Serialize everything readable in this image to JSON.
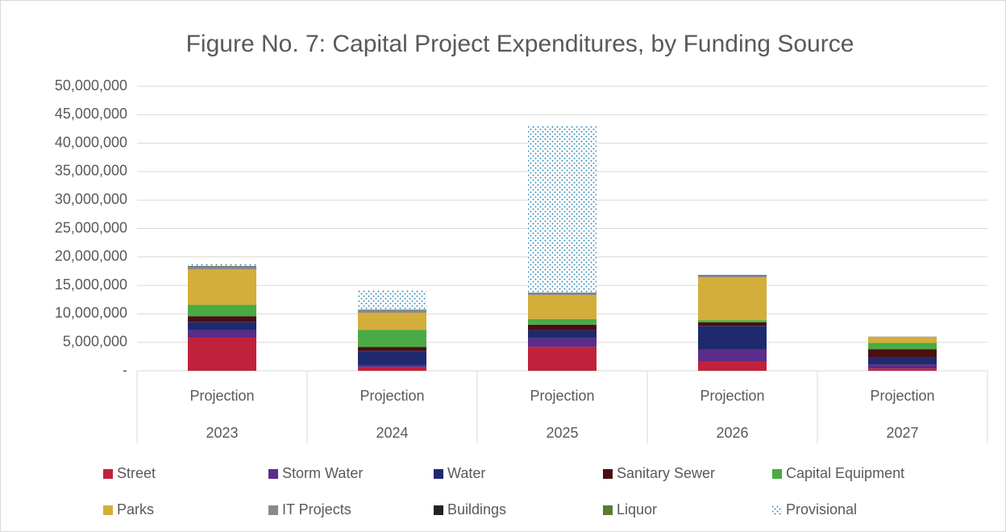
{
  "chart_data": {
    "type": "stacked_bar",
    "title": "Figure No. 7: Capital Project Expenditures, by Funding Source",
    "categories": [
      [
        "Projection",
        "2023"
      ],
      [
        "Projection",
        "2024"
      ],
      [
        "Projection",
        "2025"
      ],
      [
        "Projection",
        "2026"
      ],
      [
        "Projection",
        "2027"
      ]
    ],
    "ylim": [
      0,
      50000000
    ],
    "yticks": [
      {
        "value": 0,
        "label": "-"
      },
      {
        "value": 5000000,
        "label": "5,000,000"
      },
      {
        "value": 10000000,
        "label": "10,000,000"
      },
      {
        "value": 15000000,
        "label": "15,000,000"
      },
      {
        "value": 20000000,
        "label": "20,000,000"
      },
      {
        "value": 25000000,
        "label": "25,000,000"
      },
      {
        "value": 30000000,
        "label": "30,000,000"
      },
      {
        "value": 35000000,
        "label": "35,000,000"
      },
      {
        "value": 40000000,
        "label": "40,000,000"
      },
      {
        "value": 45000000,
        "label": "45,000,000"
      },
      {
        "value": 50000000,
        "label": "50,000,000"
      }
    ],
    "grid": true,
    "legend": "bottom",
    "series": [
      {
        "name": "Street",
        "color": "#c0223b",
        "values": [
          5800000,
          600000,
          4200000,
          1700000,
          400000
        ]
      },
      {
        "name": "Storm Water",
        "color": "#5b2c8a",
        "values": [
          1300000,
          400000,
          1500000,
          2000000,
          700000
        ]
      },
      {
        "name": "Water",
        "color": "#1f2a6e",
        "values": [
          1500000,
          2500000,
          1400000,
          4200000,
          1300000
        ]
      },
      {
        "name": "Sanitary Sewer",
        "color": "#4a0f12",
        "values": [
          1000000,
          700000,
          1000000,
          600000,
          1400000
        ]
      },
      {
        "name": "Capital Equipment",
        "color": "#4aaa45",
        "values": [
          2000000,
          3000000,
          1000000,
          400000,
          1100000
        ]
      },
      {
        "name": "Parks",
        "color": "#d4ae3a",
        "values": [
          6200000,
          3000000,
          4200000,
          7500000,
          1000000
        ]
      },
      {
        "name": "IT Projects",
        "color": "#8a8a8a",
        "values": [
          500000,
          400000,
          300000,
          300000,
          100000
        ]
      },
      {
        "name": "Buildings",
        "color": "#222222",
        "values": [
          100000,
          100000,
          100000,
          100000,
          0
        ]
      },
      {
        "name": "Liquor",
        "color": "#5b7b30",
        "values": [
          0,
          0,
          0,
          0,
          0
        ]
      },
      {
        "name": "Provisional",
        "color": "#3a8bb0",
        "pattern": "dots",
        "values": [
          400000,
          3500000,
          29300000,
          0,
          0
        ]
      }
    ]
  }
}
